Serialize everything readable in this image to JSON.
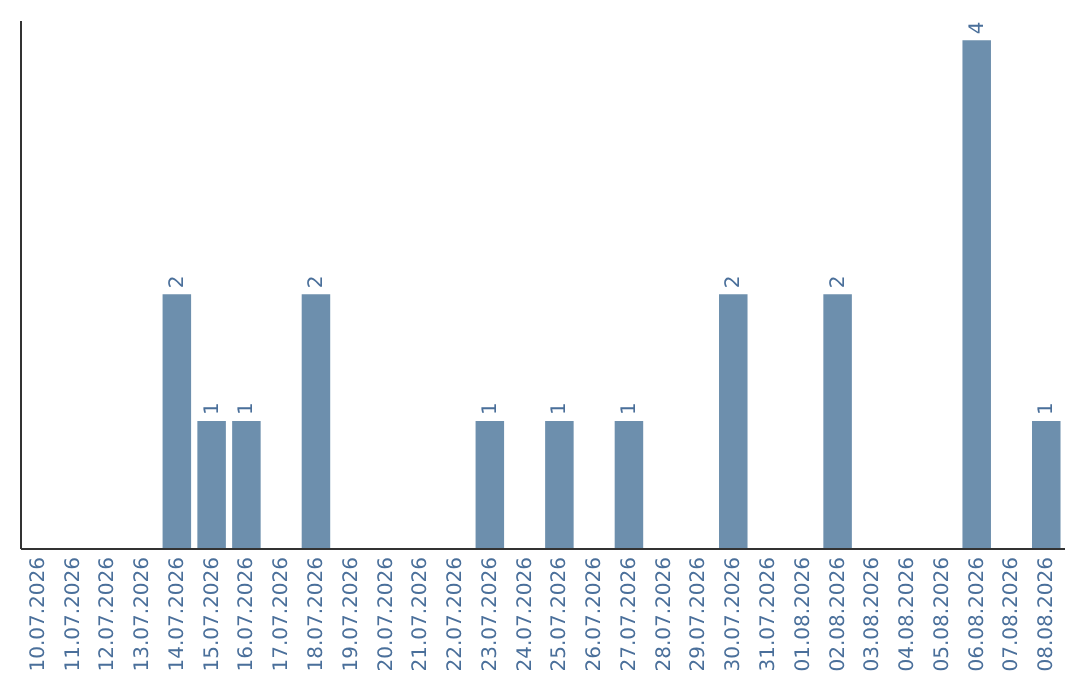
{
  "chart_data": {
    "type": "bar",
    "categories": [
      "10.07.2026",
      "11.07.2026",
      "12.07.2026",
      "13.07.2026",
      "14.07.2026",
      "15.07.2026",
      "16.07.2026",
      "17.07.2026",
      "18.07.2026",
      "19.07.2026",
      "20.07.2026",
      "21.07.2026",
      "22.07.2026",
      "23.07.2026",
      "24.07.2026",
      "25.07.2026",
      "26.07.2026",
      "27.07.2026",
      "28.07.2026",
      "29.07.2026",
      "30.07.2026",
      "31.07.2026",
      "01.08.2026",
      "02.08.2026",
      "03.08.2026",
      "04.08.2026",
      "05.08.2026",
      "06.08.2026",
      "07.08.2026",
      "08.08.2026"
    ],
    "values": [
      null,
      null,
      null,
      null,
      2,
      1,
      1,
      null,
      2,
      null,
      null,
      null,
      null,
      1,
      null,
      1,
      null,
      1,
      null,
      null,
      2,
      null,
      null,
      2,
      null,
      null,
      null,
      4,
      null,
      1
    ],
    "color": "#6d8fad",
    "ylim": [
      0,
      4.16
    ],
    "data_labels": true,
    "grid": false,
    "tick_labels": "x"
  }
}
